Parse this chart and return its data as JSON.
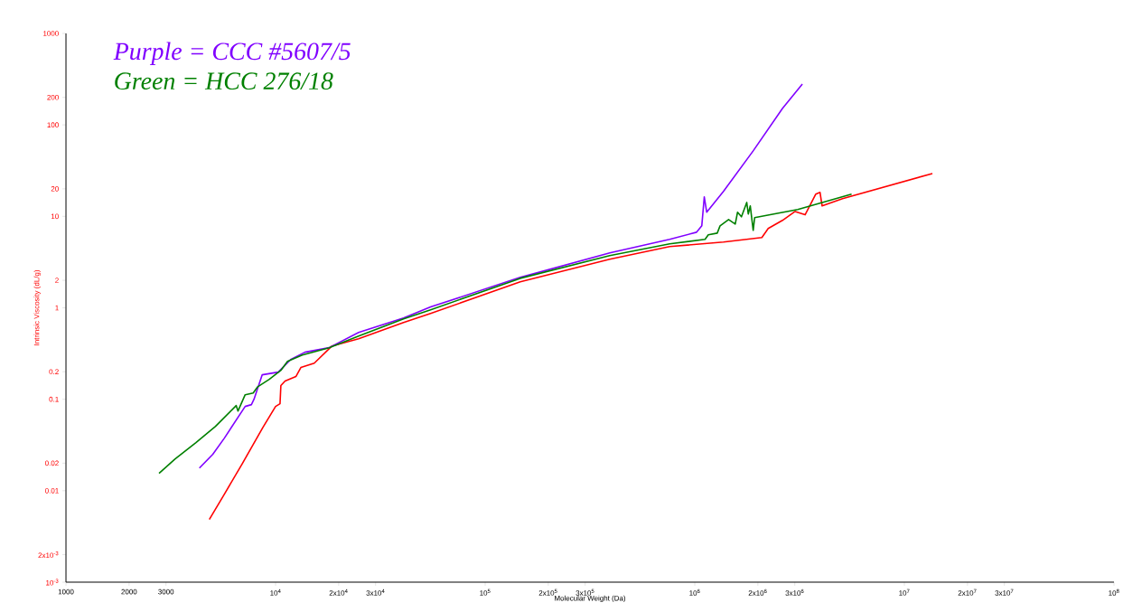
{
  "chart_data": {
    "type": "line",
    "xlabel": "Molecular Weight (Da)",
    "ylabel": "Intrinsic Viscosity (dL/g)",
    "log": "xy",
    "xlim": [
      1000,
      100000000
    ],
    "ylim": [
      0.001,
      1000
    ],
    "xticks": [
      1000,
      2000,
      3000,
      {
        "value": 10000,
        "label": "10$^{4}$"
      },
      {
        "value": 20000,
        "label": "2x10$^{4}$"
      },
      {
        "value": 30000,
        "label": "3x10$^{4}$"
      },
      {
        "value": 100000,
        "label": "10$^{5}$"
      },
      {
        "value": 200000,
        "label": "2x10$^{5}$"
      },
      {
        "value": 300000,
        "label": "3x10$^{5}$"
      },
      {
        "value": 1000000,
        "label": "10$^{6}$"
      },
      {
        "value": 2000000,
        "label": "2x10$^{6}$"
      },
      {
        "value": 3000000,
        "label": "3x10$^{6}$"
      },
      {
        "value": 10000000,
        "label": "10$^{7}$"
      },
      {
        "value": 20000000,
        "label": "2x10$^{7}$"
      },
      {
        "value": 30000000,
        "label": "3x10$^{7}$"
      },
      {
        "value": 100000000,
        "label": "10$^{8}$"
      }
    ],
    "yticks": [
      {
        "value": 0.001,
        "label": "10$^{-3}$"
      },
      {
        "value": 0.002,
        "label": "2x10$^{-3}$"
      },
      0.01,
      0.02,
      0.1,
      0.2,
      1,
      2,
      10,
      20,
      100,
      200,
      1000
    ],
    "legend": "top left",
    "marker": "none",
    "line_style": "solid",
    "grid": false,
    "series": [
      {
        "color": "#ff0000",
        "x": [
          4830,
          5700,
          6950,
          8710,
          10000,
          10500,
          10600,
          11100,
          12500,
          13200,
          15300,
          18600,
          24900,
          40800,
          54900,
          147000,
          393000,
          759000,
          1370000,
          2090000,
          2240000,
          2620000,
          3010000,
          3360000,
          3780000,
          3960000,
          4050000,
          5070000,
          13600000
        ],
        "values": [
          0.00485,
          0.00918,
          0.0199,
          0.0494,
          0.0834,
          0.0893,
          0.141,
          0.158,
          0.177,
          0.222,
          0.248,
          0.383,
          0.459,
          0.692,
          0.867,
          1.92,
          3.4,
          4.67,
          5.23,
          5.86,
          7.36,
          9.03,
          11.3,
          10.4,
          17.5,
          18.3,
          13.0,
          15.6,
          29.4
        ]
      },
      {
        "name": "Purple = CCC #5607/5",
        "color": "#8000ff",
        "x": [
          4330,
          5020,
          5700,
          7160,
          7670,
          7890,
          8630,
          10300,
          11800,
          13800,
          18000,
          24900,
          40800,
          54900,
          147000,
          393000,
          759000,
          1020000,
          1080000,
          1110000,
          1140000,
          1370000,
          1900000,
          2620000,
          3260000
        ],
        "values": [
          0.0177,
          0.025,
          0.0376,
          0.0834,
          0.0873,
          0.1,
          0.185,
          0.198,
          0.272,
          0.327,
          0.366,
          0.538,
          0.774,
          1.02,
          2.15,
          3.98,
          5.6,
          6.71,
          7.87,
          16.3,
          11.1,
          18.7,
          52.0,
          151,
          280
        ]
      },
      {
        "name": "Green = HCC 276/18",
        "color": "#008000",
        "x": [
          2780,
          3320,
          4170,
          5170,
          6490,
          6620,
          7160,
          7820,
          8220,
          9330,
          10600,
          11400,
          13400,
          18000,
          24900,
          40800,
          54900,
          147000,
          393000,
          759000,
          1120000,
          1160000,
          1280000,
          1320000,
          1450000,
          1560000,
          1600000,
          1670000,
          1770000,
          1800000,
          1840000,
          1900000,
          1930000,
          3100000,
          5600000
        ],
        "values": [
          0.0155,
          0.0223,
          0.0336,
          0.0506,
          0.0853,
          0.0744,
          0.112,
          0.117,
          0.137,
          0.165,
          0.207,
          0.26,
          0.305,
          0.366,
          0.491,
          0.757,
          0.95,
          2.1,
          3.72,
          5.0,
          5.6,
          6.28,
          6.56,
          7.87,
          9.23,
          8.24,
          11.1,
          9.89,
          14.2,
          10.6,
          13.0,
          7.03,
          9.66,
          11.9,
          17.5
        ]
      }
    ]
  }
}
